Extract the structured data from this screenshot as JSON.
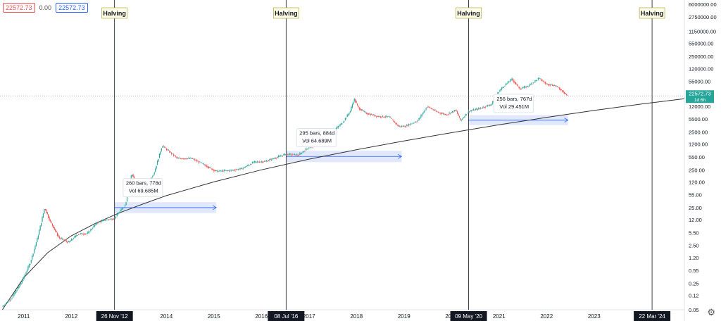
{
  "legend": {
    "open": "22572.73",
    "change": "0.00",
    "close": "22572.73"
  },
  "price_badge": {
    "value": "22572.73",
    "sub": "1d 6h",
    "color": "#26a69a"
  },
  "colors": {
    "up": "#26a69a",
    "down": "#ef5350",
    "curve": "#333333",
    "range_fill": "#dfe6fc",
    "range_line": "#2962ff"
  },
  "icons": {
    "settings": "gear-icon"
  },
  "chart_data": {
    "type": "candlestick",
    "y_scale": "log",
    "y_ticks": [
      "6000000.00",
      "2750000.00",
      "1150000.00",
      "550000.00",
      "250000.00",
      "120000.00",
      "55000.00",
      "25000.00",
      "12000.00",
      "5500.00",
      "2500.00",
      "1200.00",
      "550.00",
      "250.00",
      "120.00",
      "55.00",
      "25.00",
      "12.00",
      "5.50",
      "2.50",
      "1.20",
      "0.55",
      "0.25",
      "0.12",
      "0.05"
    ],
    "y_tick_values": [
      6000000,
      2750000,
      1150000,
      550000,
      250000,
      120000,
      55000,
      25000,
      12000,
      5500,
      2500,
      1200,
      550,
      250,
      120,
      55,
      25,
      12,
      5.5,
      2.5,
      1.2,
      0.55,
      0.25,
      0.12,
      0.05
    ],
    "x_ticks": [
      "2011",
      "2012",
      "2014",
      "2015",
      "2016",
      "2017",
      "2018",
      "2019",
      "2020",
      "2021",
      "2022",
      "2023"
    ],
    "x_tick_years": [
      2011.0,
      2012.0,
      2014.0,
      2015.0,
      2016.0,
      2017.0,
      2018.0,
      2019.0,
      2020.0,
      2021.0,
      2022.0,
      2023.0
    ],
    "x_range_years": [
      2010.5,
      2024.9
    ],
    "y_range": [
      0.05,
      6000000
    ],
    "last_price": 22572.73,
    "halvings": [
      {
        "label": "Halving",
        "date_label": "26 Nov '12",
        "year": 2012.91
      },
      {
        "label": "Halving",
        "date_label": "08 Jul '16",
        "year": 2016.52
      },
      {
        "label": "Halving",
        "date_label": "09 May '20",
        "year": 2020.36
      },
      {
        "label": "Halving",
        "date_label": "22 Mar '24",
        "year": 2024.22
      }
    ],
    "ranges": [
      {
        "start": 2012.91,
        "end": 2015.05,
        "low": 18,
        "high": 35,
        "label1": "260 bars, 778d",
        "label2": "Vol 69.685M",
        "label_year": 2013.15,
        "label_price": 100
      },
      {
        "start": 2016.52,
        "end": 2018.95,
        "low": 400,
        "high": 800,
        "label1": "295 bars, 884d",
        "label2": "Vol 64.689M",
        "label_year": 2016.8,
        "label_price": 2100
      },
      {
        "start": 2020.36,
        "end": 2022.45,
        "low": 3800,
        "high": 7000,
        "label1": "256 bars, 767d",
        "label2": "Vol 29.451M",
        "label_year": 2020.95,
        "label_price": 17000
      }
    ],
    "price_path": [
      [
        2010.55,
        0.06
      ],
      [
        2010.75,
        0.1
      ],
      [
        2010.95,
        0.25
      ],
      [
        2011.15,
        0.9
      ],
      [
        2011.3,
        4
      ],
      [
        2011.45,
        25
      ],
      [
        2011.55,
        12
      ],
      [
        2011.75,
        4
      ],
      [
        2011.95,
        3
      ],
      [
        2012.15,
        5
      ],
      [
        2012.35,
        5.2
      ],
      [
        2012.55,
        10
      ],
      [
        2012.75,
        12
      ],
      [
        2012.91,
        13
      ],
      [
        2013.15,
        30
      ],
      [
        2013.28,
        200
      ],
      [
        2013.4,
        100
      ],
      [
        2013.55,
        95
      ],
      [
        2013.75,
        200
      ],
      [
        2013.92,
        1100
      ],
      [
        2014.05,
        800
      ],
      [
        2014.25,
        500
      ],
      [
        2014.55,
        500
      ],
      [
        2014.85,
        320
      ],
      [
        2015.05,
        230
      ],
      [
        2015.35,
        240
      ],
      [
        2015.6,
        270
      ],
      [
        2015.85,
        400
      ],
      [
        2016.1,
        420
      ],
      [
        2016.52,
        650
      ],
      [
        2016.8,
        620
      ],
      [
        2017.0,
        980
      ],
      [
        2017.3,
        1200
      ],
      [
        2017.5,
        2500
      ],
      [
        2017.72,
        4500
      ],
      [
        2017.88,
        9000
      ],
      [
        2017.96,
        19000
      ],
      [
        2018.05,
        11000
      ],
      [
        2018.2,
        8000
      ],
      [
        2018.45,
        6500
      ],
      [
        2018.7,
        6300
      ],
      [
        2018.9,
        3500
      ],
      [
        2019.05,
        3600
      ],
      [
        2019.3,
        5000
      ],
      [
        2019.5,
        12000
      ],
      [
        2019.7,
        8500
      ],
      [
        2019.9,
        7200
      ],
      [
        2020.1,
        9500
      ],
      [
        2020.2,
        5000
      ],
      [
        2020.36,
        8800
      ],
      [
        2020.6,
        10500
      ],
      [
        2020.85,
        13500
      ],
      [
        2021.0,
        29000
      ],
      [
        2021.1,
        40000
      ],
      [
        2021.28,
        63000
      ],
      [
        2021.45,
        35000
      ],
      [
        2021.6,
        40000
      ],
      [
        2021.85,
        66000
      ],
      [
        2022.0,
        47000
      ],
      [
        2022.2,
        42000
      ],
      [
        2022.35,
        30000
      ],
      [
        2022.45,
        22572.73
      ]
    ],
    "power_curve": [
      [
        2010.55,
        0.05
      ],
      [
        2011.0,
        0.35
      ],
      [
        2011.5,
        1.6
      ],
      [
        2012.0,
        4.5
      ],
      [
        2012.5,
        9.5
      ],
      [
        2013.0,
        18
      ],
      [
        2013.5,
        31
      ],
      [
        2014.0,
        52
      ],
      [
        2015.0,
        120
      ],
      [
        2016.0,
        250
      ],
      [
        2017.0,
        480
      ],
      [
        2018.0,
        850
      ],
      [
        2019.0,
        1450
      ],
      [
        2020.0,
        2400
      ],
      [
        2021.0,
        3900
      ],
      [
        2022.0,
        6100
      ],
      [
        2023.0,
        9300
      ],
      [
        2024.0,
        13800
      ],
      [
        2024.9,
        19000
      ]
    ]
  }
}
